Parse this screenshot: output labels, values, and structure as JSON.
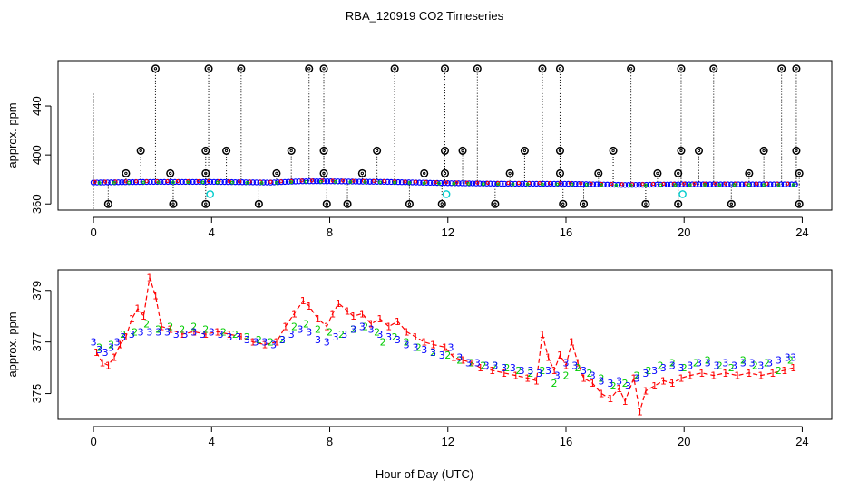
{
  "title": "RBA_120919  CO2 Timeseries",
  "xlabel": "Hour of Day (UTC)",
  "colors": {
    "series_1": "#ff0000",
    "series_2": "#00cc00",
    "series_3": "#0000ff",
    "top_overflow": "#000000",
    "top_dotted": "#000000",
    "top_cyan": "#00cccc"
  },
  "chart_data": [
    {
      "name": "top-panel",
      "type": "scatter",
      "title": "",
      "xlabel": "",
      "ylabel": "approx. ppm",
      "xlim": [
        -1.2,
        25
      ],
      "ylim": [
        355,
        477
      ],
      "x_ticks": [
        0,
        4,
        8,
        12,
        16,
        20,
        24
      ],
      "x_tick_labels": [
        "0",
        "4",
        "8",
        "12",
        "16",
        "20",
        "24"
      ],
      "y_ticks": [
        360,
        400,
        440
      ],
      "y_tick_labels": [
        "360",
        "400",
        "440"
      ],
      "baseline": [
        [
          0,
          377.5
        ],
        [
          2,
          378
        ],
        [
          4,
          378
        ],
        [
          6,
          377.5
        ],
        [
          7,
          378.5
        ],
        [
          8,
          378.5
        ],
        [
          10,
          378
        ],
        [
          12,
          377
        ],
        [
          14,
          376.5
        ],
        [
          16,
          376.5
        ],
        [
          18,
          375.5
        ],
        [
          20,
          376
        ],
        [
          22,
          376
        ],
        [
          23.8,
          376
        ]
      ],
      "spike_hours_top": [
        2.1,
        3.9,
        5.0,
        7.3,
        7.8,
        10.2,
        11.9,
        13.0,
        15.2,
        15.8,
        18.2,
        19.9,
        21.0,
        23.3,
        23.8
      ],
      "spike_hours_400": [
        1.6,
        3.8,
        4.5,
        6.7,
        7.8,
        9.6,
        11.9,
        12.5,
        14.6,
        15.8,
        17.6,
        19.9,
        20.5,
        22.7,
        23.8
      ],
      "spike_hours_385": [
        1.1,
        2.6,
        3.8,
        6.2,
        7.8,
        9.1,
        11.2,
        11.9,
        14.1,
        15.8,
        17.1,
        19.1,
        19.8,
        22.2,
        23.9
      ],
      "dip_hours_360": [
        0.5,
        2.7,
        3.8,
        5.6,
        7.9,
        8.6,
        10.7,
        11.8,
        13.6,
        15.9,
        16.6,
        18.7,
        19.8,
        21.6,
        23.9
      ],
      "cyan_points": [
        [
          3.95,
          368
        ],
        [
          11.95,
          368
        ],
        [
          19.95,
          368
        ]
      ]
    },
    {
      "name": "bottom-panel",
      "type": "scatter",
      "title": "",
      "xlabel": "Hour of Day (UTC)",
      "ylabel": "approx. ppm",
      "xlim": [
        -1.2,
        25
      ],
      "ylim": [
        374.0,
        379.8
      ],
      "x_ticks": [
        0,
        4,
        8,
        12,
        16,
        20,
        24
      ],
      "x_tick_labels": [
        "0",
        "4",
        "8",
        "12",
        "16",
        "20",
        "24"
      ],
      "y_ticks": [
        375,
        377,
        379
      ],
      "y_tick_labels": [
        "375",
        "377",
        "379"
      ],
      "marker_labels": [
        "1",
        "2",
        "3"
      ],
      "series": [
        {
          "name": "1",
          "points": [
            [
              0.1,
              376.6
            ],
            [
              0.3,
              376.2
            ],
            [
              0.5,
              376.1
            ],
            [
              0.7,
              376.4
            ],
            [
              0.9,
              376.9
            ],
            [
              1.1,
              377.2
            ],
            [
              1.3,
              377.9
            ],
            [
              1.5,
              378.3
            ],
            [
              1.7,
              378.0
            ],
            [
              1.9,
              379.5
            ],
            [
              2.1,
              378.8
            ],
            [
              2.3,
              377.6
            ],
            [
              2.6,
              377.5
            ],
            [
              3.0,
              377.3
            ],
            [
              3.4,
              377.4
            ],
            [
              3.8,
              377.3
            ],
            [
              4.2,
              377.4
            ],
            [
              4.6,
              377.3
            ],
            [
              5.0,
              377.2
            ],
            [
              5.4,
              377.0
            ],
            [
              5.8,
              376.9
            ],
            [
              6.2,
              377.0
            ],
            [
              6.5,
              377.6
            ],
            [
              6.8,
              378.1
            ],
            [
              7.1,
              378.6
            ],
            [
              7.3,
              378.4
            ],
            [
              7.6,
              377.9
            ],
            [
              7.9,
              377.6
            ],
            [
              8.1,
              378.1
            ],
            [
              8.3,
              378.5
            ],
            [
              8.6,
              378.2
            ],
            [
              8.8,
              378.0
            ],
            [
              9.1,
              378.1
            ],
            [
              9.4,
              377.7
            ],
            [
              9.7,
              377.9
            ],
            [
              10.0,
              377.6
            ],
            [
              10.3,
              377.8
            ],
            [
              10.6,
              377.4
            ],
            [
              10.9,
              377.2
            ],
            [
              11.2,
              377.0
            ],
            [
              11.5,
              376.9
            ],
            [
              11.9,
              376.8
            ],
            [
              12.2,
              376.4
            ],
            [
              12.5,
              376.3
            ],
            [
              12.8,
              376.2
            ],
            [
              13.1,
              376.0
            ],
            [
              13.5,
              375.9
            ],
            [
              13.9,
              375.8
            ],
            [
              14.3,
              375.7
            ],
            [
              14.7,
              375.6
            ],
            [
              15.0,
              375.5
            ],
            [
              15.2,
              377.3
            ],
            [
              15.4,
              376.4
            ],
            [
              15.6,
              375.9
            ],
            [
              15.8,
              376.5
            ],
            [
              16.0,
              376.1
            ],
            [
              16.2,
              377.0
            ],
            [
              16.4,
              376.2
            ],
            [
              16.6,
              375.6
            ],
            [
              16.9,
              375.4
            ],
            [
              17.2,
              375.0
            ],
            [
              17.5,
              374.8
            ],
            [
              17.8,
              375.2
            ],
            [
              18.0,
              374.7
            ],
            [
              18.3,
              375.6
            ],
            [
              18.5,
              374.3
            ],
            [
              18.7,
              375.1
            ],
            [
              19.0,
              375.3
            ],
            [
              19.3,
              375.5
            ],
            [
              19.6,
              375.4
            ],
            [
              19.9,
              375.6
            ],
            [
              20.2,
              375.7
            ],
            [
              20.6,
              375.8
            ],
            [
              21.0,
              375.7
            ],
            [
              21.4,
              375.8
            ],
            [
              21.8,
              375.7
            ],
            [
              22.2,
              375.8
            ],
            [
              22.6,
              375.7
            ],
            [
              23.0,
              375.8
            ],
            [
              23.4,
              375.9
            ],
            [
              23.7,
              376.0
            ]
          ]
        },
        {
          "name": "2",
          "points": [
            [
              0.2,
              376.8
            ],
            [
              0.6,
              376.9
            ],
            [
              1.0,
              377.3
            ],
            [
              1.4,
              377.4
            ],
            [
              1.8,
              377.7
            ],
            [
              2.2,
              377.5
            ],
            [
              2.6,
              377.6
            ],
            [
              3.0,
              377.5
            ],
            [
              3.4,
              377.6
            ],
            [
              3.8,
              377.5
            ],
            [
              4.4,
              377.4
            ],
            [
              4.8,
              377.3
            ],
            [
              5.2,
              377.2
            ],
            [
              5.6,
              377.1
            ],
            [
              6.0,
              377.0
            ],
            [
              6.4,
              377.1
            ],
            [
              6.8,
              377.6
            ],
            [
              7.2,
              377.7
            ],
            [
              7.6,
              377.5
            ],
            [
              8.0,
              377.4
            ],
            [
              8.4,
              377.3
            ],
            [
              8.8,
              377.5
            ],
            [
              9.2,
              377.6
            ],
            [
              9.6,
              377.4
            ],
            [
              9.8,
              377.0
            ],
            [
              10.2,
              377.2
            ],
            [
              10.6,
              377.0
            ],
            [
              11.0,
              376.8
            ],
            [
              11.5,
              376.6
            ],
            [
              12.0,
              376.5
            ],
            [
              12.4,
              376.3
            ],
            [
              12.8,
              376.2
            ],
            [
              13.2,
              376.1
            ],
            [
              13.6,
              376.1
            ],
            [
              14.0,
              376.0
            ],
            [
              14.4,
              375.9
            ],
            [
              14.8,
              375.8
            ],
            [
              15.2,
              375.9
            ],
            [
              15.6,
              375.4
            ],
            [
              16.0,
              375.7
            ],
            [
              16.4,
              376.0
            ],
            [
              16.8,
              375.8
            ],
            [
              17.2,
              375.6
            ],
            [
              17.6,
              375.3
            ],
            [
              18.0,
              375.4
            ],
            [
              18.4,
              375.7
            ],
            [
              18.8,
              375.9
            ],
            [
              19.2,
              376.1
            ],
            [
              19.6,
              376.2
            ],
            [
              20.0,
              376.0
            ],
            [
              20.4,
              376.2
            ],
            [
              20.8,
              376.3
            ],
            [
              21.2,
              376.1
            ],
            [
              21.6,
              376.0
            ],
            [
              22.0,
              376.3
            ],
            [
              22.4,
              376.1
            ],
            [
              22.8,
              376.2
            ],
            [
              23.2,
              375.9
            ],
            [
              23.6,
              376.3
            ]
          ]
        },
        {
          "name": "3",
          "points": [
            [
              0.0,
              377.0
            ],
            [
              0.2,
              376.7
            ],
            [
              0.4,
              376.6
            ],
            [
              0.6,
              376.8
            ],
            [
              0.8,
              377.0
            ],
            [
              1.0,
              377.2
            ],
            [
              1.3,
              377.3
            ],
            [
              1.6,
              377.4
            ],
            [
              1.9,
              377.4
            ],
            [
              2.2,
              377.4
            ],
            [
              2.5,
              377.4
            ],
            [
              2.8,
              377.3
            ],
            [
              3.1,
              377.3
            ],
            [
              3.4,
              377.4
            ],
            [
              3.7,
              377.3
            ],
            [
              4.0,
              377.4
            ],
            [
              4.3,
              377.3
            ],
            [
              4.6,
              377.2
            ],
            [
              4.9,
              377.2
            ],
            [
              5.2,
              377.1
            ],
            [
              5.5,
              377.0
            ],
            [
              5.8,
              377.0
            ],
            [
              6.1,
              376.9
            ],
            [
              6.4,
              377.1
            ],
            [
              6.7,
              377.3
            ],
            [
              7.0,
              377.5
            ],
            [
              7.3,
              377.4
            ],
            [
              7.6,
              377.1
            ],
            [
              7.9,
              377.0
            ],
            [
              8.2,
              377.2
            ],
            [
              8.5,
              377.3
            ],
            [
              8.8,
              377.5
            ],
            [
              9.1,
              377.6
            ],
            [
              9.4,
              377.5
            ],
            [
              9.7,
              377.3
            ],
            [
              10.0,
              377.2
            ],
            [
              10.3,
              377.1
            ],
            [
              10.6,
              376.9
            ],
            [
              10.9,
              376.8
            ],
            [
              11.2,
              376.7
            ],
            [
              11.5,
              376.6
            ],
            [
              11.8,
              376.5
            ],
            [
              12.1,
              376.8
            ],
            [
              12.4,
              376.4
            ],
            [
              12.7,
              376.2
            ],
            [
              13.0,
              376.2
            ],
            [
              13.3,
              376.1
            ],
            [
              13.6,
              376.1
            ],
            [
              13.9,
              376.0
            ],
            [
              14.2,
              376.0
            ],
            [
              14.5,
              375.9
            ],
            [
              14.8,
              375.9
            ],
            [
              15.1,
              375.8
            ],
            [
              15.4,
              375.9
            ],
            [
              15.7,
              375.7
            ],
            [
              16.0,
              376.2
            ],
            [
              16.3,
              376.1
            ],
            [
              16.6,
              375.9
            ],
            [
              16.9,
              375.7
            ],
            [
              17.2,
              375.5
            ],
            [
              17.5,
              375.4
            ],
            [
              17.8,
              375.5
            ],
            [
              18.1,
              375.3
            ],
            [
              18.4,
              375.6
            ],
            [
              18.7,
              375.8
            ],
            [
              19.0,
              375.9
            ],
            [
              19.3,
              376.0
            ],
            [
              19.6,
              376.1
            ],
            [
              19.9,
              376.0
            ],
            [
              20.2,
              376.1
            ],
            [
              20.5,
              376.2
            ],
            [
              20.8,
              376.2
            ],
            [
              21.1,
              376.1
            ],
            [
              21.4,
              376.2
            ],
            [
              21.7,
              376.1
            ],
            [
              22.0,
              376.2
            ],
            [
              22.3,
              376.2
            ],
            [
              22.6,
              376.1
            ],
            [
              22.9,
              376.2
            ],
            [
              23.2,
              376.3
            ],
            [
              23.5,
              376.4
            ],
            [
              23.7,
              376.4
            ]
          ]
        }
      ]
    }
  ]
}
